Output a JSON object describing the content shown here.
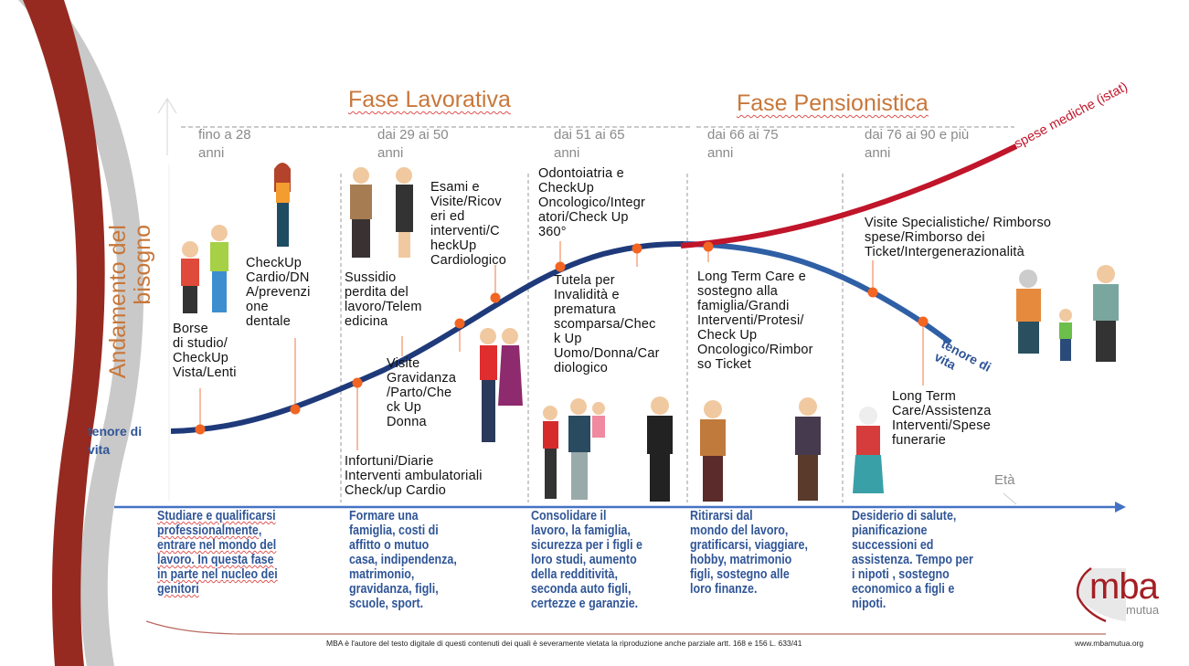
{
  "phases": {
    "working": "Fase Lavorativa",
    "retirement": "Fase Pensionistica"
  },
  "age_ranges": [
    "fino a 28\nanni",
    "dai 29 ai 50\nanni",
    "dai 51 ai 65\nanni",
    "dai 66 ai 75\nanni",
    "dai 76 ai 90 e più\nanni"
  ],
  "axis": {
    "y_label": "Andamento del\nbisogno",
    "x_label": "Età"
  },
  "curves": {
    "living_standard_start": "tenore di\nvita",
    "living_standard_end": "tenore di\nvita",
    "medical_costs": "spese mediche (istat)",
    "living_color": "#1f3a7a",
    "decline_color": "#2f5fa5",
    "medical_color": "#c0152a",
    "dot_color": "#f26522"
  },
  "notes": [
    "Borse\ndi studio/\nCheckUp\nVista/Lenti",
    "CheckUp\nCardio/DN\nA/prevenzi\none\ndentale",
    "Sussidio\nperdita del\nlavoro/Telem\nedicina",
    "Esami e\nVisite/Ricov\neri ed\ninterventi/C\nheckUp\nCardiologico",
    "Visite\nGravidanza\n/Parto/Che\nck Up\nDonna",
    "Infortuni/Diarie\nInterventi ambulatoriali\nCheck/up Cardio",
    "Odontoiatria e\nCheckUp\nOncologico/Integr\natori/Check Up\n360°",
    "Tutela per\nInvalidità e\nprematura\nscomparsa/Chec\nk Up\nUomo/Donna/Car\ndiologico",
    "Long Term Care e\nsostegno alla\nfamiglia/Grandi\nInterventi/Protesi/\nCheck Up\nOncologico/Rimbor\nso Ticket",
    "Visite Specialistiche/ Rimborso\nspese/Rimborso dei\nTicket/Intergenerazionalità",
    "Long Term\nCare/Assistenza\nInterventi/Spese\nfunerarie"
  ],
  "descriptions": [
    "Studiare e qualificarsi\nprofessionalmente,\nentrare nel mondo del\nlavoro. In questa fase\nin parte nel nucleo dei\ngenitori",
    "Formare una\nfamiglia, costi di\naffitto o mutuo\ncasa, indipendenza,\nmatrimonio,\ngravidanza, figli,\nscuole, sport.",
    "Consolidare il\nlavoro, la famiglia,\nsicurezza per i figli e\nloro studi, aumento\ndella redditività,\nseconda auto figli,\ncertezze e garanzie.",
    "Ritirarsi dal\nmondo del lavoro,\ngratificarsi, viaggiare,\nhobby, matrimonio\nfigli, sostegno alle\nloro finanze.",
    "Desiderio di salute,\npianificazione\nsuccessioni ed\nassistenza. Tempo per\ni nipoti , sostegno\neconomico a figli e\nnipoti."
  ],
  "logo": {
    "name": "mba",
    "sub": "mutua",
    "color": "#a31f24"
  },
  "footer": {
    "copyright": "MBA è l'autore del testo digitale di questi contenuti dei quali è severamente vietata la riproduzione anche parziale artt. 168 e 156 L. 633/41",
    "website": "www.mbamutua.org"
  }
}
